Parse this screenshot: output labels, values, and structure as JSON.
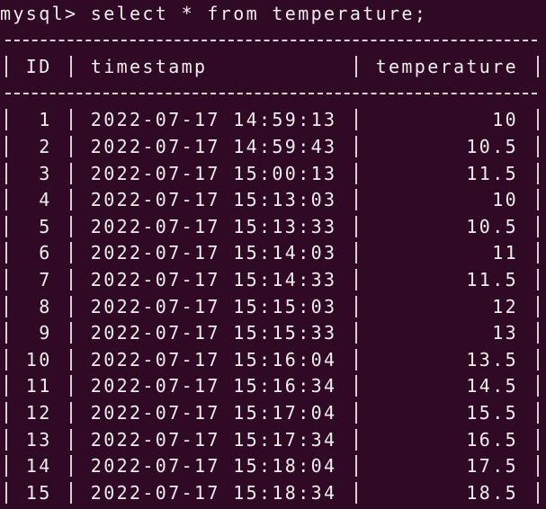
{
  "prompt": "mysql>",
  "command": "select * from temperature;",
  "table": {
    "columns": [
      "ID",
      "timestamp",
      "temperature"
    ],
    "rows": [
      [
        1,
        "2022-07-17 14:59:13",
        10
      ],
      [
        2,
        "2022-07-17 14:59:43",
        10.5
      ],
      [
        3,
        "2022-07-17 15:00:13",
        11.5
      ],
      [
        4,
        "2022-07-17 15:13:03",
        10
      ],
      [
        5,
        "2022-07-17 15:13:33",
        10.5
      ],
      [
        6,
        "2022-07-17 15:14:03",
        11
      ],
      [
        7,
        "2022-07-17 15:14:33",
        11.5
      ],
      [
        8,
        "2022-07-17 15:15:03",
        12
      ],
      [
        9,
        "2022-07-17 15:15:33",
        13
      ],
      [
        10,
        "2022-07-17 15:16:04",
        13.5
      ],
      [
        11,
        "2022-07-17 15:16:34",
        14.5
      ],
      [
        12,
        "2022-07-17 15:17:04",
        15.5
      ],
      [
        13,
        "2022-07-17 15:17:34",
        16.5
      ],
      [
        14,
        "2022-07-17 15:18:04",
        17.5
      ],
      [
        15,
        "2022-07-17 15:18:34",
        18.5
      ]
    ]
  }
}
